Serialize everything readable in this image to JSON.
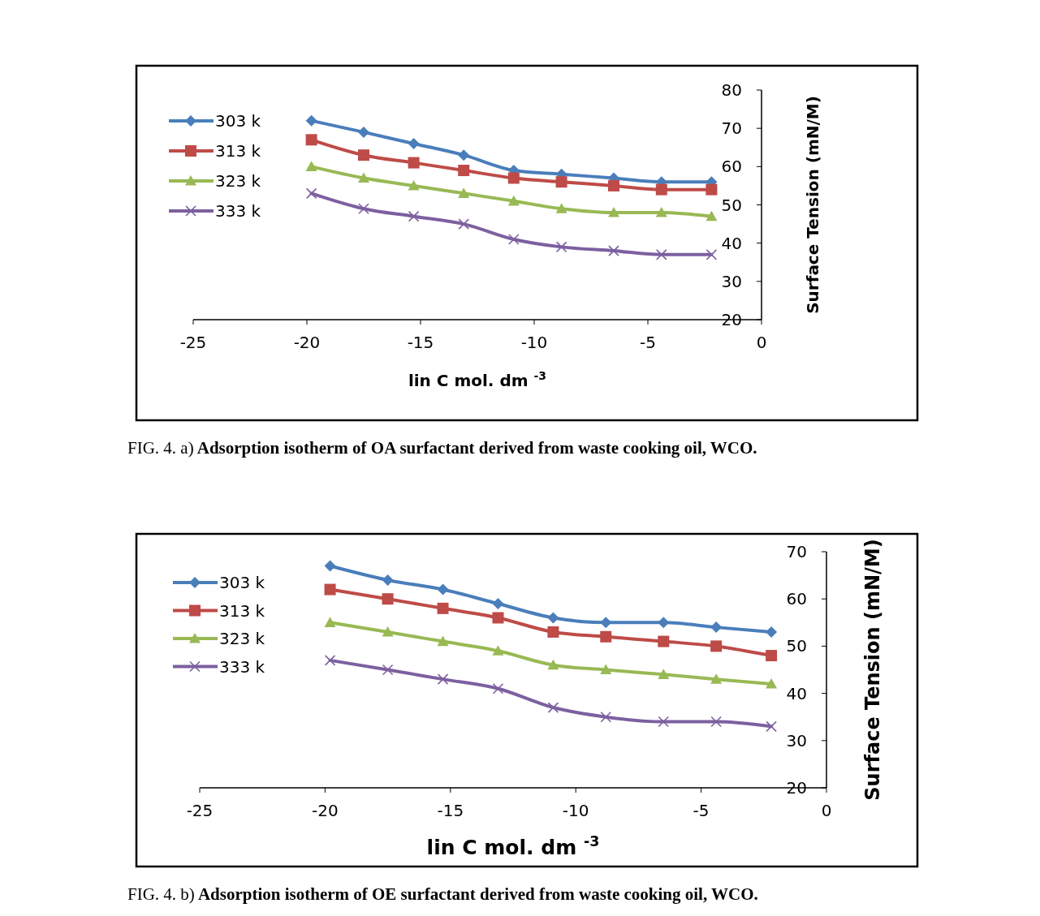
{
  "chart_data": [
    {
      "type": "line",
      "ylabel": "Surface Tension (mN/M)",
      "xlabel": "lin C  mol. dm $^{-3}$",
      "annotations": [
        "FIG. 4. a)",
        "Adsorption isotherm of OA surfactant derived from waste cooking oil, WCO."
      ],
      "x": [
        -19.8,
        -17.5,
        -15.3,
        -13.1,
        -10.9,
        -8.8,
        -6.5,
        -4.4,
        -2.2
      ],
      "xlim": [
        -25,
        0
      ],
      "xticks": [
        -25,
        -20,
        -15,
        -10,
        -5,
        0
      ],
      "ylim": [
        20,
        80
      ],
      "yticks": [
        20,
        30,
        40,
        50,
        60,
        70,
        80
      ],
      "legend": "top left",
      "grid": false,
      "series": [
        {
          "name": "303 k",
          "color": "#4a7ebb",
          "marker": "diamond",
          "values": [
            72,
            69,
            66,
            63,
            59,
            58,
            57,
            56,
            56
          ]
        },
        {
          "name": "313 k",
          "color": "#be4b48",
          "marker": "square",
          "values": [
            67,
            63,
            61,
            59,
            57,
            56,
            55,
            54,
            54
          ]
        },
        {
          "name": "323 k",
          "color": "#98b954",
          "marker": "triangle",
          "values": [
            60,
            57,
            55,
            53,
            51,
            49,
            48,
            48,
            47
          ]
        },
        {
          "name": "333 k",
          "color": "#7d60a0",
          "marker": "cross",
          "values": [
            53,
            49,
            47,
            45,
            41,
            39,
            38,
            37,
            37
          ]
        }
      ]
    },
    {
      "type": "line",
      "ylabel": "Surface Tension (mN/M)",
      "xlabel": "lin C  mol. dm $^{-3}$",
      "annotations": [
        "FIG. 4. b)",
        "Adsorption isotherm of OE surfactant derived from waste cooking oil, WCO."
      ],
      "x": [
        -19.8,
        -17.5,
        -15.3,
        -13.1,
        -10.9,
        -8.8,
        -6.5,
        -4.4,
        -2.2
      ],
      "xlim": [
        -25,
        0
      ],
      "xticks": [
        -25,
        -20,
        -15,
        -10,
        -5,
        0
      ],
      "ylim": [
        20,
        70
      ],
      "yticks": [
        20,
        30,
        40,
        50,
        60,
        70
      ],
      "legend": "top left",
      "grid": false,
      "series": [
        {
          "name": "303 k",
          "color": "#4a7ebb",
          "marker": "diamond",
          "values": [
            67,
            64,
            62,
            59,
            56,
            55,
            55,
            54,
            53
          ]
        },
        {
          "name": "313 k",
          "color": "#be4b48",
          "marker": "square",
          "values": [
            62,
            60,
            58,
            56,
            53,
            52,
            51,
            50,
            48
          ]
        },
        {
          "name": "323 k",
          "color": "#98b954",
          "marker": "triangle",
          "values": [
            55,
            53,
            51,
            49,
            46,
            45,
            44,
            43,
            42
          ]
        },
        {
          "name": "333 k",
          "color": "#7d60a0",
          "marker": "cross",
          "values": [
            47,
            45,
            43,
            41,
            37,
            35,
            34,
            34,
            33
          ]
        }
      ]
    }
  ]
}
